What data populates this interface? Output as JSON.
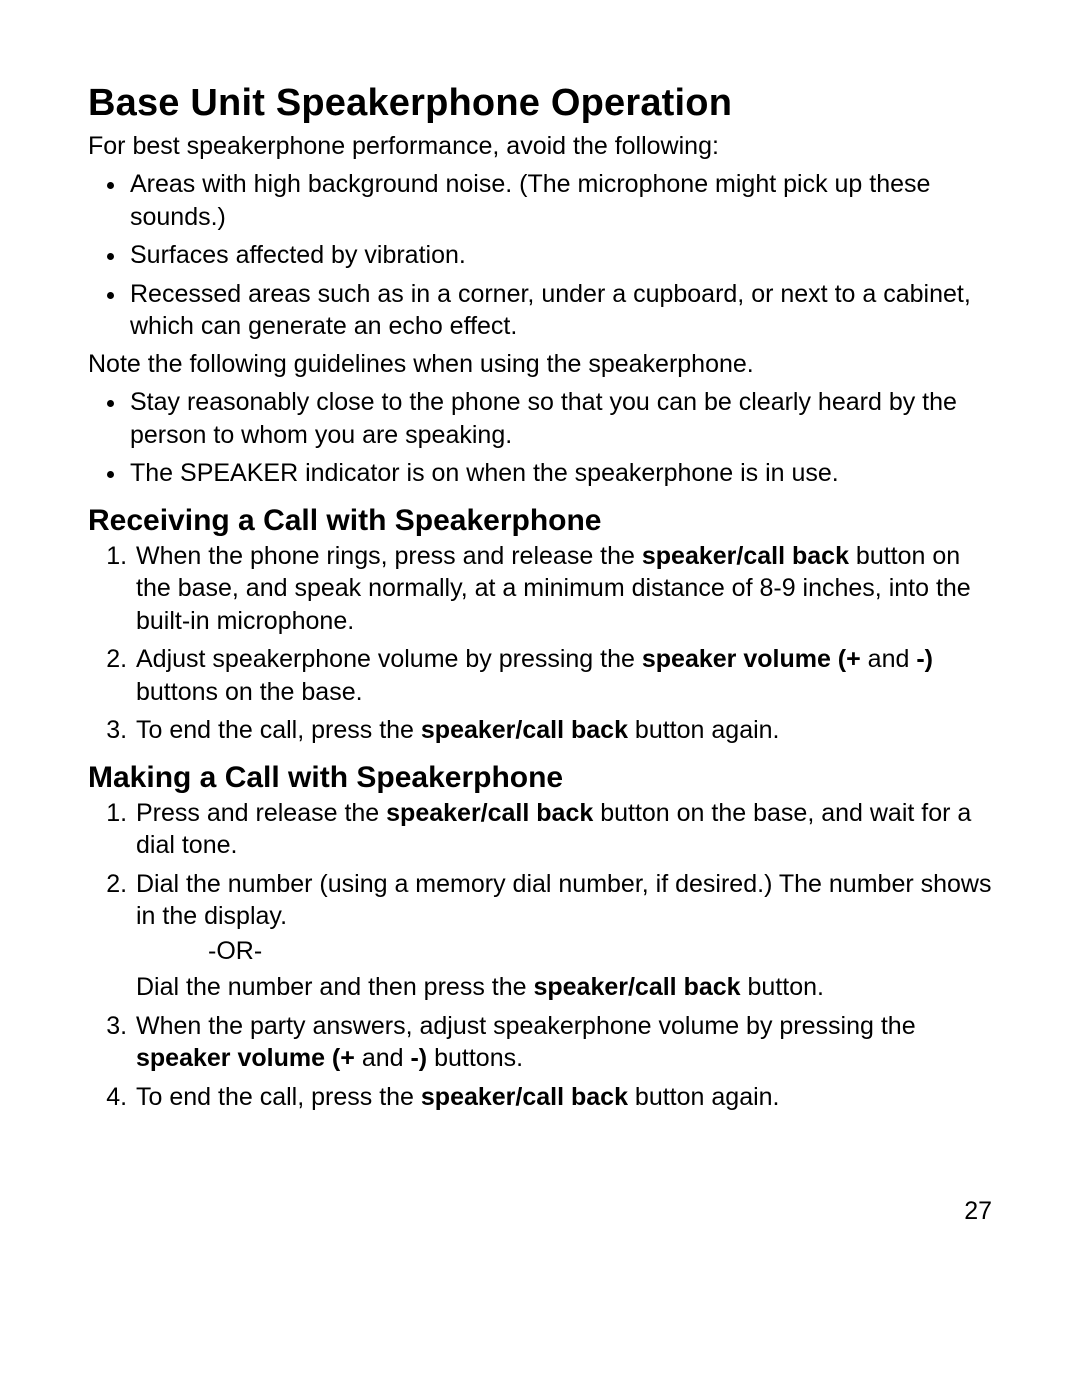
{
  "page_number": "27",
  "title": "Base Unit Speakerphone Operation",
  "intro": "For best speakerphone performance, avoid the following:",
  "avoid_list": [
    "Areas with high background noise. (The microphone might pick up these sounds.)",
    "Surfaces affected by vibration.",
    "Recessed areas such as in a corner, under a cupboard, or next to a cabinet, which can generate an echo effect."
  ],
  "note_intro": "Note the following guidelines when using the speakerphone.",
  "guidelines": [
    "Stay reasonably close to the phone so that you can be clearly heard by the person to whom you are speaking.",
    "The SPEAKER indicator is on when the speakerphone is in use."
  ],
  "receiving": {
    "heading": "Receiving a Call with Speakerphone",
    "step1_a": "When the phone rings, press and release the ",
    "step1_bold": "speaker/call back",
    "step1_b": " button on the base, and speak normally, at a minimum distance of 8-9 inches, into the built-in microphone.",
    "step2_a": "Adjust speakerphone volume by pressing the ",
    "step2_bold1": "speaker volume (+",
    "step2_mid": " and ",
    "step2_bold2": "-)",
    "step2_b": " buttons on the base.",
    "step3_a": "To end the call, press the ",
    "step3_bold": "speaker/call back",
    "step3_b": " button again."
  },
  "making": {
    "heading": "Making a Call with Speakerphone",
    "step1_a": "Press and release the ",
    "step1_bold": "speaker/call back",
    "step1_b": " button on the base, and wait for a dial tone.",
    "step2": "Dial the number (using a memory dial number, if desired.) The number shows in the display.",
    "or": "-OR-",
    "step2_alt_a": "Dial the number and then press the ",
    "step2_alt_bold": "speaker/call back",
    "step2_alt_b": " button.",
    "step3_a": "When the party answers, adjust speakerphone volume by pressing the ",
    "step3_bold1": "speaker volume (+",
    "step3_mid": " and ",
    "step3_bold2": "-)",
    "step3_b": " buttons.",
    "step4_a": "To end the call, press the ",
    "step4_bold": "speaker/call back",
    "step4_b": " button again."
  }
}
